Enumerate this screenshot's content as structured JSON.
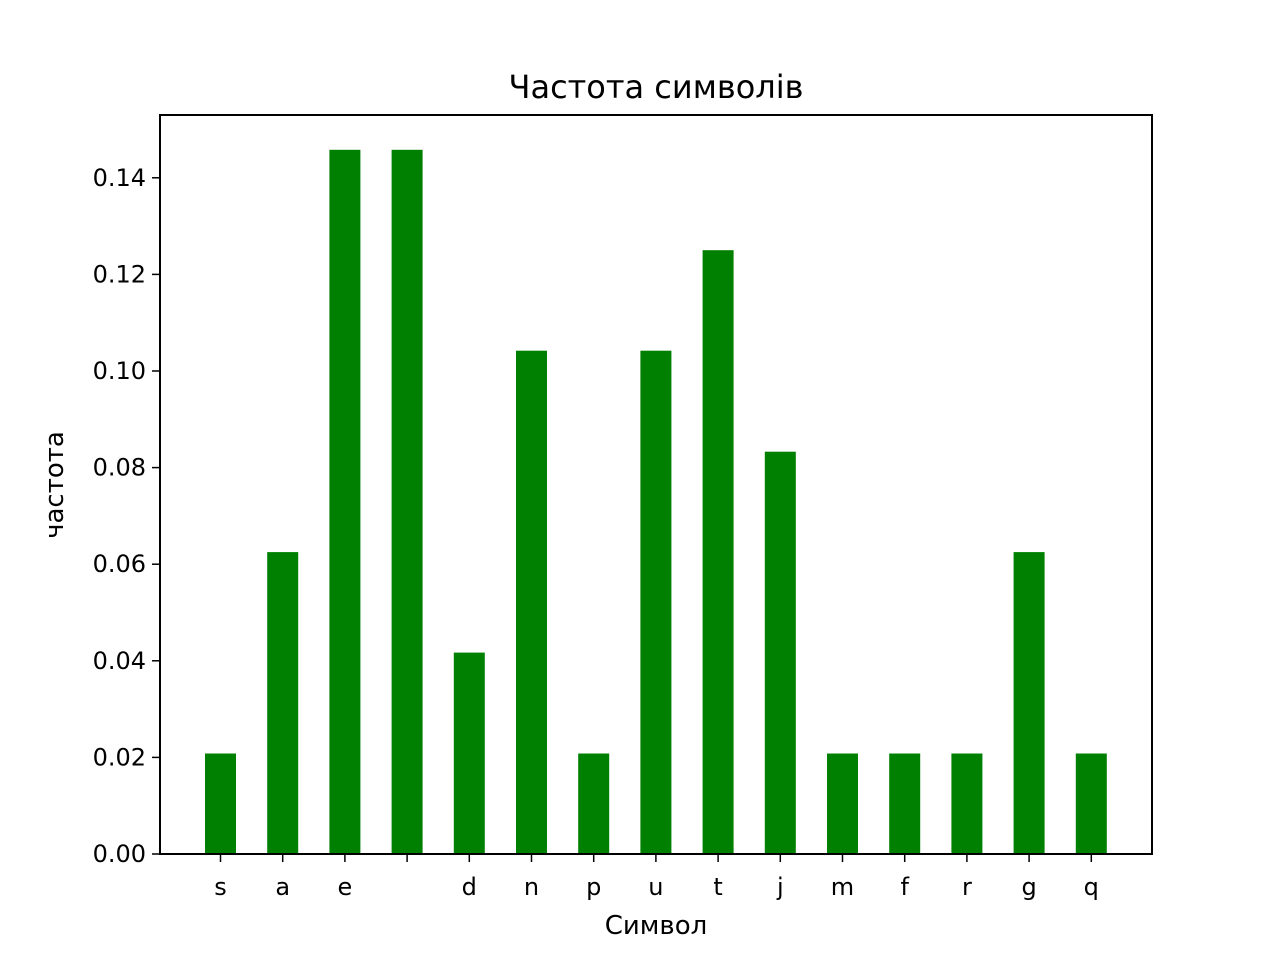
{
  "chart_data": {
    "type": "bar",
    "title": "Частота символів",
    "xlabel": "Символ",
    "ylabel": "частота",
    "categories": [
      "s",
      "a",
      "e",
      " ",
      "d",
      "n",
      "p",
      "u",
      "t",
      "j",
      "m",
      "f",
      "r",
      "g",
      "q"
    ],
    "values": [
      0.0208,
      0.0625,
      0.1458,
      0.1458,
      0.0417,
      0.1042,
      0.0208,
      0.1042,
      0.125,
      0.0833,
      0.0208,
      0.0208,
      0.0208,
      0.0625,
      0.0208
    ],
    "ylim": [
      0,
      0.153
    ],
    "yticks": [
      "0.00",
      "0.02",
      "0.04",
      "0.06",
      "0.08",
      "0.10",
      "0.12",
      "0.14"
    ],
    "grid": false,
    "legend": "none",
    "bar_color": "#008000"
  }
}
